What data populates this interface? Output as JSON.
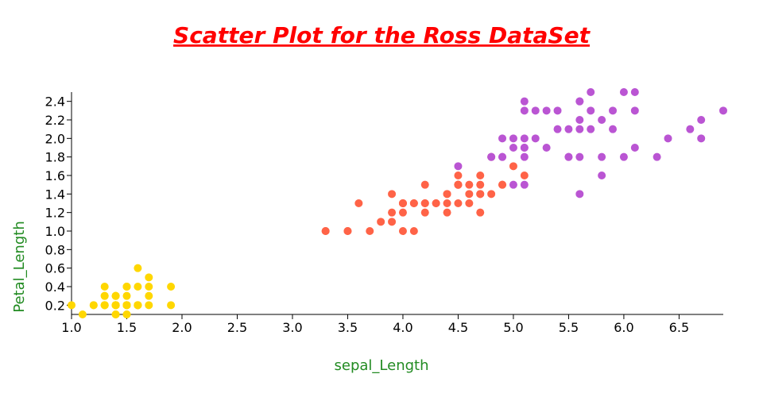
{
  "chart_data": {
    "type": "scatter",
    "title": "Scatter Plot for the Ross DataSet",
    "x_label": "sepal_Length",
    "y_label": "Petal_Length",
    "xlim": [
      1.0,
      6.9
    ],
    "ylim": [
      0.1,
      2.5
    ],
    "xticks": [
      {
        "value": 1,
        "label": "1.0"
      },
      1.5,
      {
        "value": 2,
        "label": "2.0"
      },
      2.5,
      {
        "value": 3,
        "label": "3.0"
      },
      3.5,
      {
        "value": 4,
        "label": "4.0"
      },
      4.5,
      {
        "value": 5,
        "label": "5.0"
      },
      5.5,
      {
        "value": 6,
        "label": "6.0"
      },
      6.5
    ],
    "yticks": [
      0.2,
      0.4,
      0.6,
      0.8,
      {
        "value": 1,
        "label": "1.0"
      },
      1.2,
      1.4,
      1.6,
      1.8,
      {
        "value": 2,
        "label": "2.0"
      },
      2.2,
      2.4
    ],
    "series": [
      {
        "color": "#ffd700",
        "x": [
          1.4,
          1.4,
          1.3,
          1.5,
          1.4,
          1.7,
          1.4,
          1.5,
          1.4,
          1.5,
          1.5,
          1.6,
          1.4,
          1.1,
          1.2,
          1.5,
          1.3,
          1.4,
          1.7,
          1.5,
          1.7,
          1.5,
          1.0,
          1.7,
          1.9,
          1.6,
          1.6,
          1.5,
          1.4,
          1.6,
          1.6,
          1.5,
          1.5,
          1.4,
          1.5,
          1.2,
          1.3,
          1.4,
          1.3,
          1.5,
          1.3,
          1.3,
          1.3,
          1.6,
          1.9,
          1.4,
          1.6,
          1.4,
          1.5,
          1.4
        ],
        "values": [
          0.2,
          0.2,
          0.2,
          0.2,
          0.2,
          0.4,
          0.3,
          0.2,
          0.2,
          0.1,
          0.2,
          0.2,
          0.1,
          0.1,
          0.2,
          0.4,
          0.4,
          0.3,
          0.3,
          0.3,
          0.2,
          0.4,
          0.2,
          0.5,
          0.2,
          0.2,
          0.4,
          0.2,
          0.2,
          0.2,
          0.2,
          0.4,
          0.1,
          0.2,
          0.2,
          0.2,
          0.2,
          0.1,
          0.2,
          0.2,
          0.3,
          0.3,
          0.2,
          0.6,
          0.4,
          0.3,
          0.2,
          0.2,
          0.2,
          0.2
        ]
      },
      {
        "color": "#ff6347",
        "x": [
          4.7,
          4.5,
          4.9,
          4.0,
          4.6,
          4.5,
          4.7,
          3.3,
          4.6,
          3.9,
          3.5,
          4.2,
          4.0,
          4.7,
          3.6,
          4.4,
          4.5,
          4.1,
          4.5,
          3.9,
          4.8,
          4.0,
          4.9,
          4.7,
          4.3,
          4.4,
          4.8,
          5.0,
          4.5,
          3.5,
          3.8,
          3.7,
          3.9,
          5.1,
          4.5,
          4.5,
          4.7,
          4.4,
          4.1,
          4.0,
          4.4,
          4.6,
          4.0,
          3.3,
          4.2,
          4.2,
          4.2,
          4.3,
          4.1
        ],
        "values": [
          1.4,
          1.5,
          1.5,
          1.3,
          1.5,
          1.3,
          1.6,
          1.0,
          1.3,
          1.4,
          1.0,
          1.5,
          1.0,
          1.4,
          1.3,
          1.4,
          1.5,
          1.0,
          1.5,
          1.1,
          1.8,
          1.3,
          1.5,
          1.2,
          1.3,
          1.4,
          1.4,
          1.7,
          1.5,
          1.0,
          1.1,
          1.0,
          1.2,
          1.6,
          1.5,
          1.6,
          1.5,
          1.3,
          1.3,
          1.3,
          1.2,
          1.4,
          1.2,
          1.0,
          1.3,
          1.2,
          1.3,
          1.3,
          1.3
        ]
      },
      {
        "color": "#ba55d3",
        "x": [
          6.0,
          5.1,
          5.9,
          5.6,
          5.8,
          6.6,
          4.5,
          6.3,
          5.8,
          6.1,
          5.1,
          5.3,
          5.5,
          5.0,
          5.1,
          5.3,
          5.5,
          6.7,
          6.9,
          5.0,
          5.7,
          4.9,
          6.7,
          4.9,
          5.7,
          6.0,
          4.8,
          4.9,
          5.6,
          5.8,
          6.1,
          6.4,
          5.6,
          5.1,
          5.6,
          6.1,
          5.6,
          5.5,
          4.8,
          5.4,
          5.6,
          5.1,
          5.1,
          5.9,
          5.7,
          5.2,
          5.0,
          5.2,
          5.4,
          5.1
        ],
        "values": [
          2.5,
          1.9,
          2.1,
          1.8,
          2.2,
          2.1,
          1.7,
          1.8,
          1.8,
          2.5,
          2.0,
          1.9,
          2.1,
          2.0,
          2.4,
          2.3,
          1.8,
          2.2,
          2.3,
          1.5,
          2.3,
          2.0,
          2.0,
          1.8,
          2.1,
          1.8,
          1.8,
          1.8,
          2.1,
          1.6,
          1.9,
          2.0,
          2.2,
          1.5,
          1.4,
          2.3,
          2.4,
          1.8,
          1.8,
          2.1,
          2.4,
          2.3,
          1.9,
          2.3,
          2.5,
          2.3,
          1.9,
          2.0,
          2.3,
          1.8
        ]
      }
    ]
  }
}
